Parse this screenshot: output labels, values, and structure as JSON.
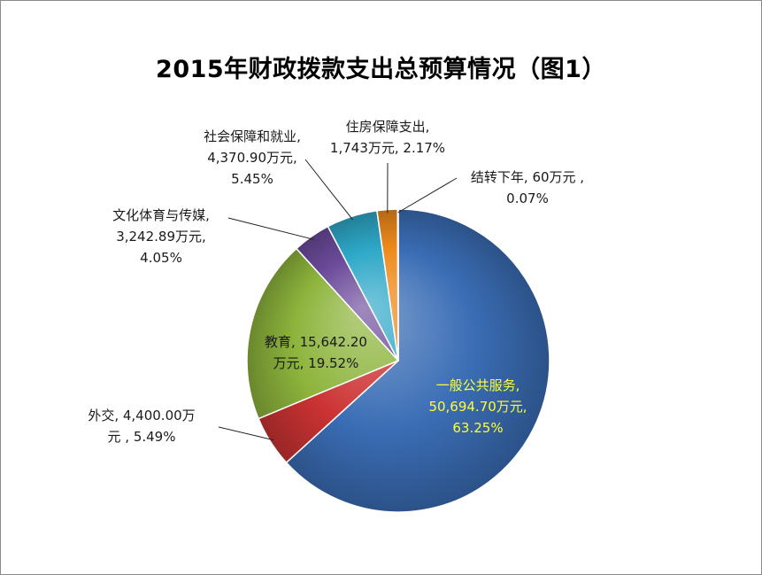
{
  "chart_data": {
    "type": "pie",
    "title": "2015年财政拨款支出总预算情况（图1）",
    "series": [
      {
        "name": "一般公共服务",
        "value": 50694.7,
        "value_label": "50,694.70万元",
        "percent_label": "63.25%",
        "color": "#3a6db5"
      },
      {
        "name": "外交",
        "value": 4400.0,
        "value_label": "4,400.00万",
        "percent_label": "5.49%",
        "color": "#cc3333"
      },
      {
        "name": "教育",
        "value": 15642.2,
        "value_label": "15,642.20",
        "percent_label": "19.52%",
        "color": "#8db43c"
      },
      {
        "name": "文化体育与传媒",
        "value": 3242.89,
        "value_label": "3,242.89万元,",
        "percent_label": "4.05%",
        "color": "#6b4a9a"
      },
      {
        "name": "社会保障和就业",
        "value": 4370.9,
        "value_label": "4,370.90万元,",
        "percent_label": "5.45%",
        "color": "#2ea8c8"
      },
      {
        "name": "住房保障支出",
        "value": 1743,
        "value_label": "1,743万元,",
        "percent_label": "2.17%",
        "color": "#ee8a1c"
      },
      {
        "name": "结转下年",
        "value": 60,
        "value_label": "60万元 ,",
        "percent_label": "0.07%",
        "color": "#4a7ac4"
      }
    ],
    "labels": [
      {
        "lines": [
          "一般公共服务,",
          "50,694.70万元,",
          "63.25%"
        ]
      },
      {
        "lines": [
          "外交, 4,400.00万",
          "元 , 5.49%"
        ]
      },
      {
        "lines": [
          "教育, 15,642.20",
          "万元, 19.52%"
        ]
      },
      {
        "lines": [
          "文化体育与传媒,",
          "3,242.89万元,",
          "4.05%"
        ]
      },
      {
        "lines": [
          "社会保障和就业,",
          "4,370.90万元,",
          "5.45%"
        ]
      },
      {
        "lines": [
          "住房保障支出,",
          "1,743万元, 2.17%"
        ]
      },
      {
        "lines": [
          "结转下年, 60万元 ,",
          "0.07%"
        ]
      }
    ],
    "legend": "none",
    "grid": false
  }
}
